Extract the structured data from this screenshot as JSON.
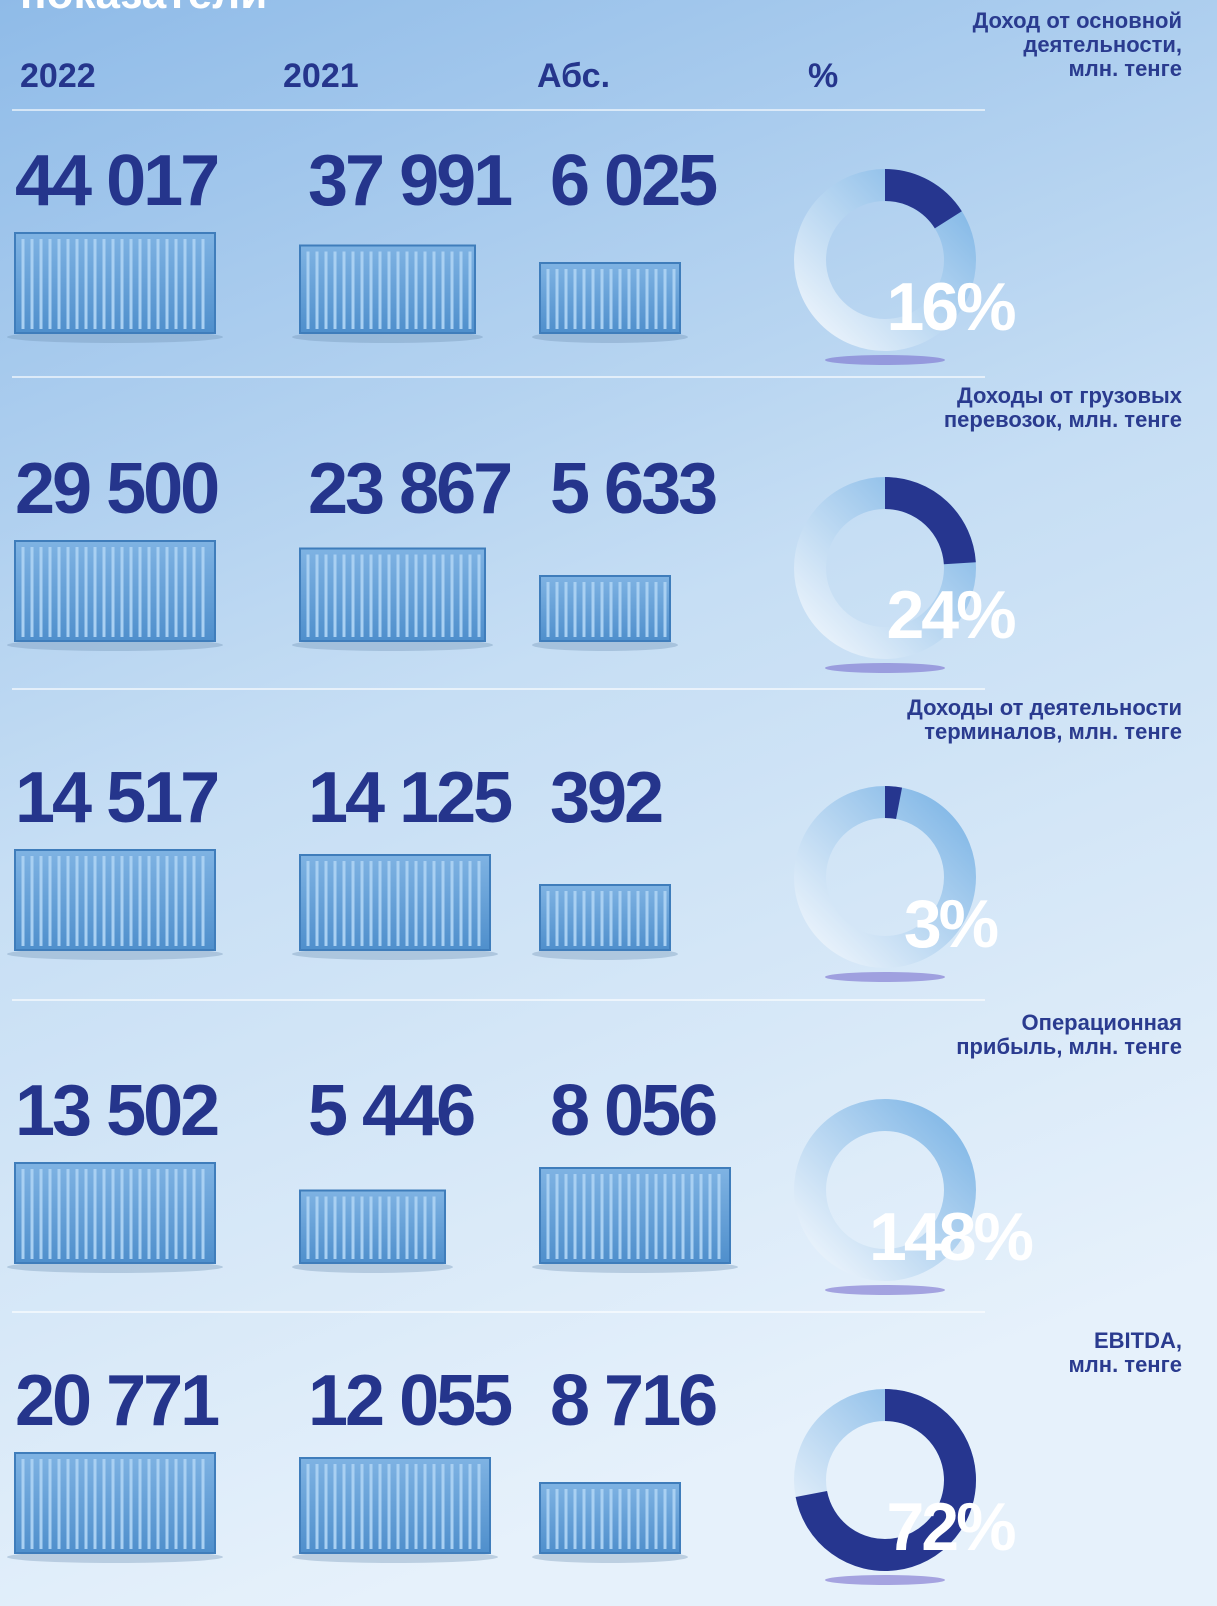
{
  "title": "показатели",
  "header": {
    "col_2022": "2022",
    "col_2021": "2021",
    "col_abs": "Абс.",
    "col_pct": "%"
  },
  "rows": [
    {
      "title": [
        "Доход от основной",
        "деятельности,",
        "млн. тенге"
      ],
      "v2022": "44 017",
      "v2021": "37 991",
      "abs": "6 025",
      "pct": 16,
      "pct_label": "16%"
    },
    {
      "title": [
        "Доходы от грузовых",
        "перевозок, млн. тенге"
      ],
      "v2022": "29 500",
      "v2021": "23 867",
      "abs": "5 633",
      "pct": 24,
      "pct_label": "24%"
    },
    {
      "title": [
        "Доходы от деятельности",
        "терминалов, млн. тенге"
      ],
      "v2022": "14 517",
      "v2021": "14 125",
      "abs": "392",
      "pct": 3,
      "pct_label": "3%"
    },
    {
      "title": [
        "Операционная",
        "прибыль, млн. тенге"
      ],
      "v2022": "13 502",
      "v2021": "5 446",
      "abs": "8 056",
      "pct": 148,
      "pct_label": "148%"
    },
    {
      "title": [
        "EBITDA,",
        "млн. тенге"
      ],
      "v2022": "20 771",
      "v2021": "12 055",
      "abs": "8 716",
      "pct": 72,
      "pct_label": "72%"
    }
  ]
}
